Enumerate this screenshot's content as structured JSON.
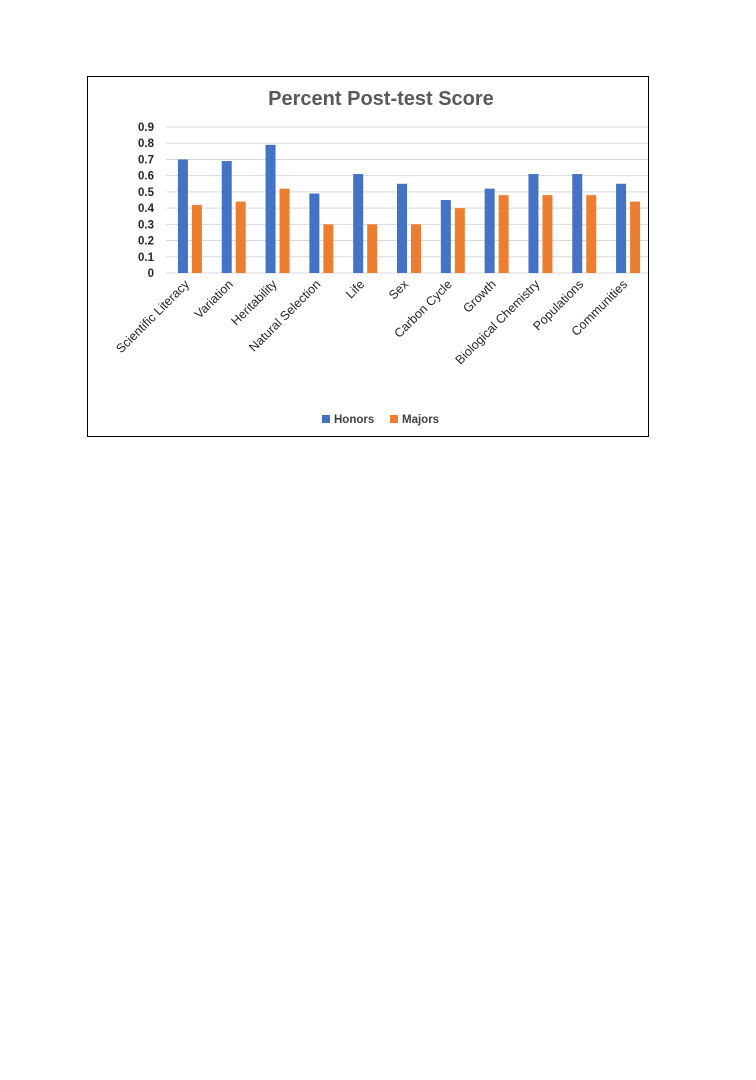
{
  "chart_data": {
    "type": "bar",
    "title": "Percent Post-test Score",
    "xlabel": "",
    "ylabel": "",
    "ylim": [
      0,
      0.9
    ],
    "yticks": [
      "0",
      "0.1",
      "0.2",
      "0.3",
      "0.4",
      "0.5",
      "0.6",
      "0.7",
      "0.8",
      "0.9"
    ],
    "grid": true,
    "legend_position": "bottom",
    "categories": [
      "Scientific Literacy",
      "Variation",
      "Heritability",
      "Natural Selection",
      "Life",
      "Sex",
      "Carbon Cycle",
      "Growth",
      "Biological Chemistry",
      "Populations",
      "Communities"
    ],
    "series": [
      {
        "name": "Honors",
        "color": "#4472C4",
        "values": [
          0.7,
          0.69,
          0.79,
          0.49,
          0.61,
          0.55,
          0.45,
          0.52,
          0.61,
          0.61,
          0.55
        ]
      },
      {
        "name": "Majors",
        "color": "#ED7D31",
        "values": [
          0.42,
          0.44,
          0.52,
          0.3,
          0.3,
          0.3,
          0.4,
          0.48,
          0.48,
          0.48,
          0.44
        ]
      }
    ]
  }
}
